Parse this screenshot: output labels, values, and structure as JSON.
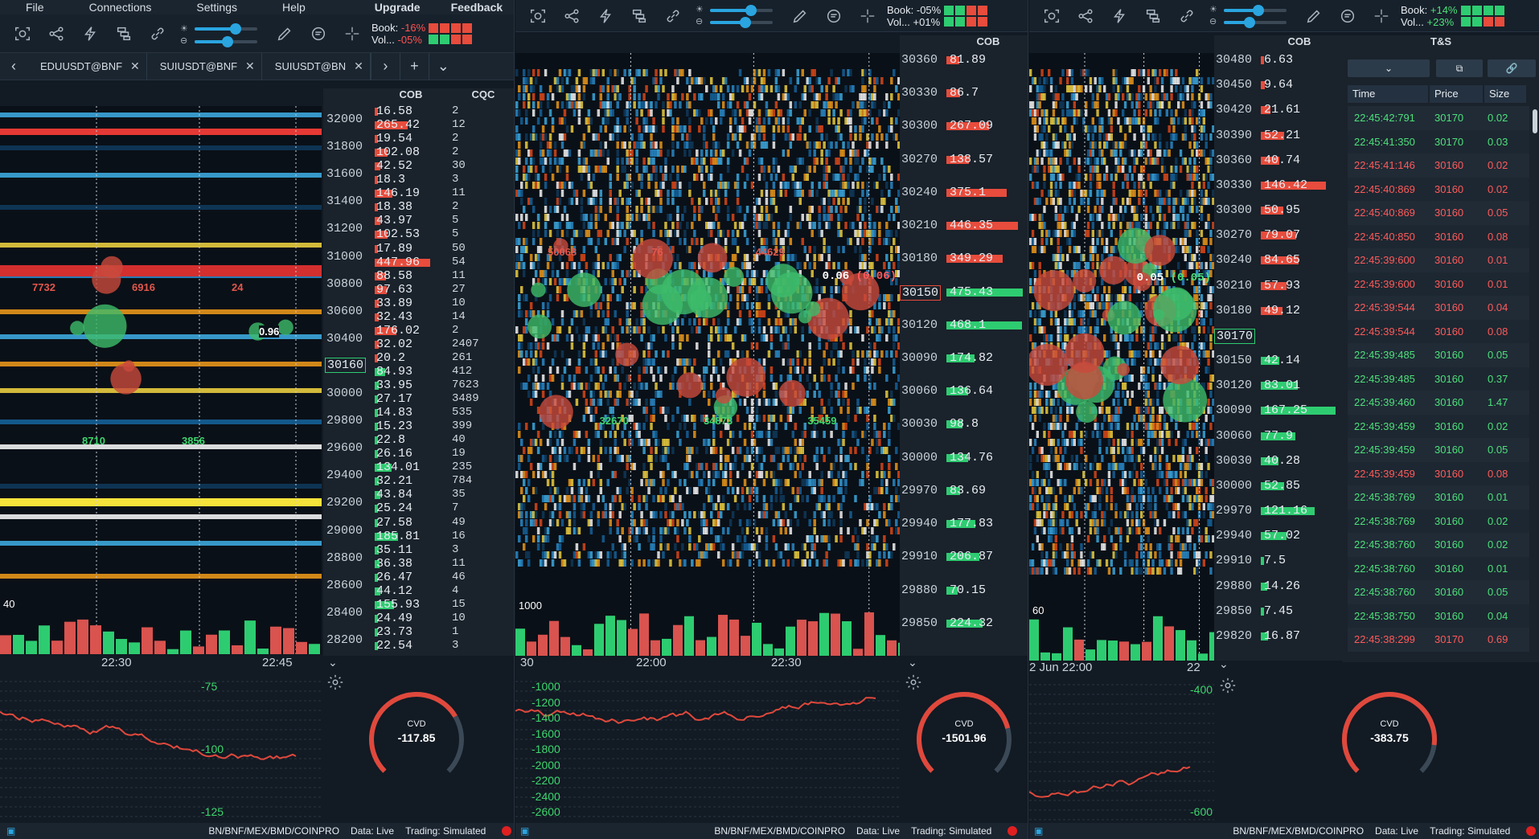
{
  "menubar": {
    "items": [
      "File",
      "Connections",
      "Settings",
      "Help"
    ],
    "upgrade": "Upgrade",
    "feedback": "Feedback"
  },
  "windows": [
    {
      "book_label": "Book:",
      "book_value": "-16%",
      "vol_label": "Vol...",
      "vol_value": "-05%",
      "meter": [
        "#e74c3c",
        "#e74c3c",
        "#e74c3c",
        "#e74c3c",
        "#2ecc71",
        "#2ecc71",
        "#e74c3c",
        "#e74c3c"
      ],
      "tabs": [
        "EDUUSDT@BNF",
        "SUIUSDT@BNF",
        "SUIUSDT@BN"
      ],
      "cob_header": "COB",
      "cqc_header": "CQC",
      "prices": [
        "32000",
        "31800",
        "31600",
        "31400",
        "31200",
        "31000",
        "30800",
        "30600",
        "30400",
        "30160",
        "30000",
        "29800",
        "29600",
        "29400",
        "29200",
        "29000",
        "28800",
        "28600",
        "28400",
        "28200"
      ],
      "current_price": "30160",
      "cob_values": [
        "16.58",
        "265.42",
        "19.54",
        "102.08",
        "42.52",
        "18.3",
        "146.19",
        "18.38",
        "43.97",
        "102.53",
        "17.89",
        "447.96",
        "88.58",
        "97.63",
        "33.89",
        "32.43",
        "176.02",
        "32.02",
        "20.2",
        "84.93",
        "33.95",
        "27.17",
        "14.83",
        "15.23",
        "22.8",
        "26.16",
        "134.01",
        "32.21",
        "43.84",
        "25.24",
        "27.58",
        "185.81",
        "35.11",
        "36.38",
        "26.47",
        "44.12",
        "155.93",
        "24.49",
        "23.73",
        "22.54"
      ],
      "cqc_values": [
        "2",
        "12",
        "2",
        "2",
        "30",
        "3",
        "11",
        "2",
        "5",
        "5",
        "50",
        "54",
        "11",
        "27",
        "10",
        "14",
        "2",
        "2407",
        "261",
        "412",
        "7623",
        "3489",
        "535",
        "399",
        "40",
        "19",
        "235",
        "784",
        "35",
        "7",
        "49",
        "16",
        "3",
        "11",
        "46",
        "4",
        "15",
        "10",
        "1",
        "3"
      ],
      "bubble_labels": [
        "7732",
        "8710",
        "6916",
        "3856",
        "24"
      ],
      "volume_scale": "40",
      "time_labels": [
        "22:30",
        "22:45"
      ],
      "cvd_scale": [
        "-75",
        "-100",
        "-125"
      ],
      "cvd_label": "CVD",
      "cvd_value": "-117.85",
      "cvd_fraction": 0.72,
      "current_marker": "0.96",
      "status": {
        "exchanges": "BN/BNF/MEX/BMD/COINPRO",
        "data": "Data: Live",
        "trading": "Trading: Simulated"
      }
    },
    {
      "book_label": "Book:",
      "book_value": "-05%",
      "vol_label": "Vol...",
      "vol_value": "+01%",
      "meter": [
        "#2ecc71",
        "#2ecc71",
        "#e74c3c",
        "#e74c3c",
        "#2ecc71",
        "#2ecc71",
        "#e74c3c",
        "#e74c3c"
      ],
      "cob_header": "COB",
      "prices": [
        "30360",
        "30330",
        "30300",
        "30270",
        "30240",
        "30210",
        "30180",
        "30150",
        "30120",
        "30090",
        "30060",
        "30030",
        "30000",
        "29970",
        "29940",
        "29910",
        "29880",
        "29850"
      ],
      "current_price": "30150",
      "cob_values": [
        "81.89",
        "86.7",
        "267.09",
        "138.57",
        "375.1",
        "446.35",
        "349.29",
        "475.43",
        "468.1",
        "174.82",
        "136.64",
        "98.8",
        "134.76",
        "83.69",
        "177.83",
        "206.87",
        "70.15",
        "224.32"
      ],
      "bubble_labels": [
        "50068",
        "32670",
        "76",
        "34873",
        "44629",
        "35459"
      ],
      "trade_marker": "0.06",
      "trade_marker_paren": "(0.06)",
      "volume_scale": "1000",
      "time_labels": [
        "30",
        "22:00",
        "22:30"
      ],
      "cvd_scale": [
        "-1000",
        "-1200",
        "-1400",
        "-1600",
        "-1800",
        "-2000",
        "-2200",
        "-2400",
        "-2600"
      ],
      "cvd_label": "CVD",
      "cvd_value": "-1501.96",
      "cvd_fraction": 0.78,
      "status": {
        "exchanges": "BN/BNF/MEX/BMD/COINPRO",
        "data": "Data: Live",
        "trading": "Trading: Simulated"
      }
    },
    {
      "book_label": "Book:",
      "book_value": "+14%",
      "vol_label": "Vol...",
      "vol_value": "+23%",
      "meter": [
        "#2ecc71",
        "#2ecc71",
        "#2ecc71",
        "#2ecc71",
        "#2ecc71",
        "#2ecc71",
        "#e74c3c",
        "#e74c3c"
      ],
      "cob_header": "COB",
      "prices": [
        "30480",
        "30450",
        "30420",
        "30390",
        "30360",
        "30330",
        "30300",
        "30270",
        "30240",
        "30210",
        "30180",
        "30170",
        "30150",
        "30120",
        "30090",
        "30060",
        "30030",
        "30000",
        "29970",
        "29940",
        "29910",
        "29880",
        "29850",
        "29820"
      ],
      "current_price": "30170",
      "cob_values": [
        "6.63",
        "9.64",
        "21.61",
        "52.21",
        "40.74",
        "146.42",
        "50.95",
        "79.07",
        "84.65",
        "57.93",
        "49.12",
        "",
        "42.14",
        "83.01",
        "167.25",
        "77.9",
        "40.28",
        "52.85",
        "121.16",
        "57.02",
        "7.5",
        "14.26",
        "7.45",
        "16.87"
      ],
      "trade_marker": "0.05",
      "trade_marker_paren": "(0.05)",
      "volume_scale": "60",
      "time_labels": [
        "2 Jun 22:00",
        "22"
      ],
      "cvd_scale": [
        "-400",
        "-600"
      ],
      "cvd_label": "CVD",
      "cvd_value": "-383.75",
      "cvd_fraction": 0.86,
      "status": {
        "exchanges": "BN/BNF/MEX/BMD/COINPRO",
        "data": "Data: Live",
        "trading": "Trading: Simulated"
      }
    }
  ],
  "time_and_sales": {
    "title": "T&S",
    "columns": [
      "Time",
      "Price",
      "Size"
    ],
    "rows": [
      {
        "time": "22:45:42:791",
        "price": "30170",
        "size": "0.02",
        "side": "buy"
      },
      {
        "time": "22:45:41:350",
        "price": "30170",
        "size": "0.03",
        "side": "buy"
      },
      {
        "time": "22:45:41:146",
        "price": "30160",
        "size": "0.02",
        "side": "sell"
      },
      {
        "time": "22:45:40:869",
        "price": "30160",
        "size": "0.02",
        "side": "sell"
      },
      {
        "time": "22:45:40:869",
        "price": "30160",
        "size": "0.05",
        "side": "sell"
      },
      {
        "time": "22:45:40:850",
        "price": "30160",
        "size": "0.08",
        "side": "sell"
      },
      {
        "time": "22:45:39:600",
        "price": "30160",
        "size": "0.01",
        "side": "sell"
      },
      {
        "time": "22:45:39:600",
        "price": "30160",
        "size": "0.01",
        "side": "sell"
      },
      {
        "time": "22:45:39:544",
        "price": "30160",
        "size": "0.04",
        "side": "sell"
      },
      {
        "time": "22:45:39:544",
        "price": "30160",
        "size": "0.08",
        "side": "sell"
      },
      {
        "time": "22:45:39:485",
        "price": "30160",
        "size": "0.05",
        "side": "buy"
      },
      {
        "time": "22:45:39:485",
        "price": "30160",
        "size": "0.37",
        "side": "buy"
      },
      {
        "time": "22:45:39:460",
        "price": "30160",
        "size": "1.47",
        "side": "buy"
      },
      {
        "time": "22:45:39:459",
        "price": "30160",
        "size": "0.02",
        "side": "buy"
      },
      {
        "time": "22:45:39:459",
        "price": "30160",
        "size": "0.05",
        "side": "buy"
      },
      {
        "time": "22:45:39:459",
        "price": "30160",
        "size": "0.08",
        "side": "sell"
      },
      {
        "time": "22:45:38:769",
        "price": "30160",
        "size": "0.01",
        "side": "buy"
      },
      {
        "time": "22:45:38:769",
        "price": "30160",
        "size": "0.02",
        "side": "buy"
      },
      {
        "time": "22:45:38:760",
        "price": "30160",
        "size": "0.02",
        "side": "buy"
      },
      {
        "time": "22:45:38:760",
        "price": "30160",
        "size": "0.01",
        "side": "buy"
      },
      {
        "time": "22:45:38:760",
        "price": "30160",
        "size": "0.05",
        "side": "buy"
      },
      {
        "time": "22:45:38:750",
        "price": "30160",
        "size": "0.04",
        "side": "buy"
      },
      {
        "time": "22:45:38:299",
        "price": "30170",
        "size": "0.69",
        "side": "sell"
      }
    ]
  },
  "icons": [
    "screenshot-icon",
    "share-icon",
    "drawing-icon",
    "layers-icon",
    "link-icon",
    "brightness-icon",
    "contrast-icon",
    "pencil-icon",
    "comment-icon",
    "crosshair-icon",
    "gear-icon",
    "chevron-down-icon",
    "popout-icon"
  ]
}
